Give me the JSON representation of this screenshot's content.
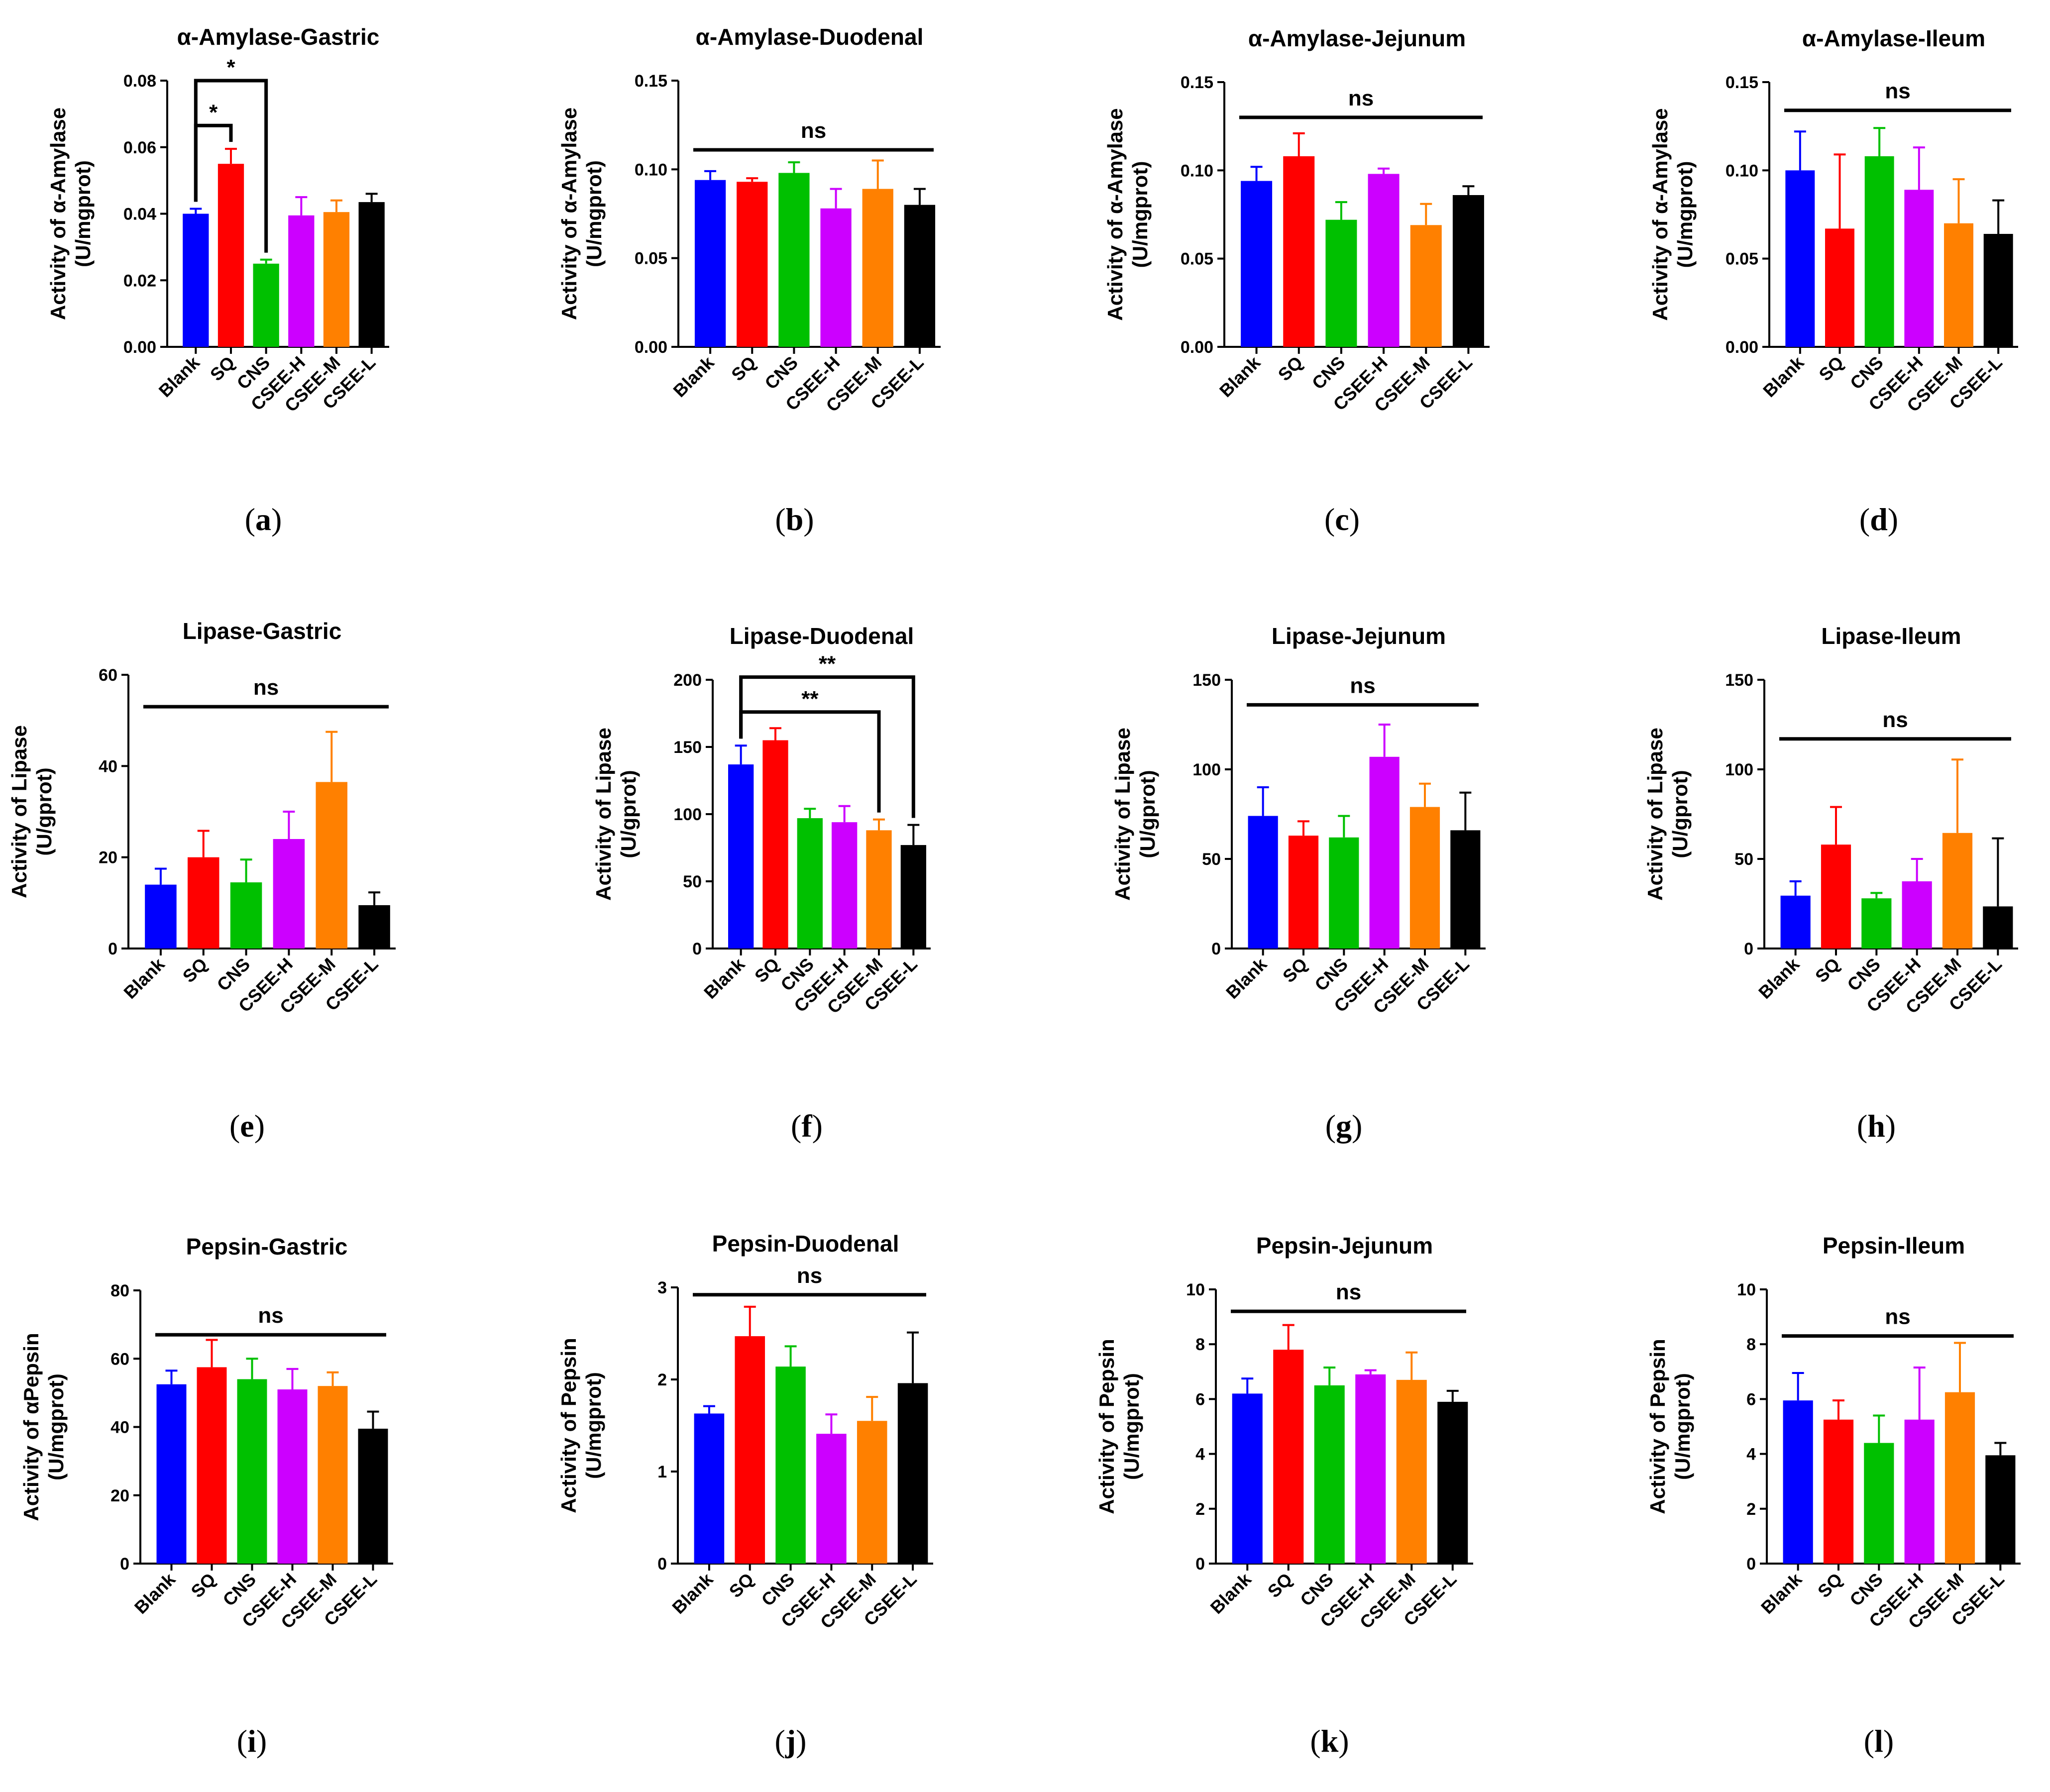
{
  "colors": {
    "Blank": "#0000ff",
    "SQ": "#ff0000",
    "CNS": "#00c000",
    "CSEE-H": "#cc00ff",
    "CSEE-M": "#ff8000",
    "CSEE-L": "#000000",
    "axis": "#000000"
  },
  "chart_data": [
    {
      "type": "bar",
      "label": "a",
      "title": "α-Amylase-Gastric",
      "ylabel": [
        "Activity of α-Amylase",
        "(U/mgprot)"
      ],
      "categories": [
        "Blank",
        "SQ",
        "CNS",
        "CSEE-H",
        "CSEE-M",
        "CSEE-L"
      ],
      "values": [
        0.04,
        0.055,
        0.025,
        0.0395,
        0.0405,
        0.0435
      ],
      "errors": [
        0.0015,
        0.0045,
        0.0012,
        0.0055,
        0.0035,
        0.0025
      ],
      "ylim": [
        0,
        0.08
      ],
      "yticks": [
        "0.00",
        "0.02",
        "0.04",
        "0.06",
        "0.08"
      ],
      "brackets": [
        {
          "type": "pair",
          "from": 0,
          "to": 1,
          "level": 0.0665,
          "label": "*"
        },
        {
          "type": "pair",
          "from": 0,
          "to": 2,
          "level": 0.08,
          "label": "*"
        }
      ]
    },
    {
      "type": "bar",
      "label": "b",
      "title": "α-Amylase-Duodenal",
      "ylabel": [
        "Activity of α-Amylase",
        "(U/mgprot)"
      ],
      "categories": [
        "Blank",
        "SQ",
        "CNS",
        "CSEE-H",
        "CSEE-M",
        "CSEE-L"
      ],
      "values": [
        0.094,
        0.093,
        0.098,
        0.078,
        0.089,
        0.08
      ],
      "errors": [
        0.005,
        0.002,
        0.006,
        0.011,
        0.016,
        0.009
      ],
      "ylim": [
        0,
        0.15
      ],
      "yticks": [
        "0.00",
        "0.05",
        "0.10",
        "0.15"
      ],
      "brackets": [
        {
          "type": "line",
          "level": 0.111,
          "label": "ns"
        }
      ]
    },
    {
      "type": "bar",
      "label": "c",
      "title": "α-Amylase-Jejunum",
      "ylabel": [
        "Activity of α-Amylase",
        "(U/mgprot)"
      ],
      "categories": [
        "Blank",
        "SQ",
        "CNS",
        "CSEE-H",
        "CSEE-M",
        "CSEE-L"
      ],
      "values": [
        0.094,
        0.108,
        0.072,
        0.098,
        0.069,
        0.086
      ],
      "errors": [
        0.008,
        0.013,
        0.01,
        0.003,
        0.012,
        0.005
      ],
      "ylim": [
        0,
        0.15
      ],
      "yticks": [
        "0.00",
        "0.05",
        "0.10",
        "0.15"
      ],
      "brackets": [
        {
          "type": "line",
          "level": 0.13,
          "label": "ns"
        }
      ]
    },
    {
      "type": "bar",
      "label": "d",
      "title": "α-Amylase-Ileum",
      "ylabel": [
        "Activity of α-Amylase",
        "(U/mgprot)"
      ],
      "categories": [
        "Blank",
        "SQ",
        "CNS",
        "CSEE-H",
        "CSEE-M",
        "CSEE-L"
      ],
      "values": [
        0.1,
        0.067,
        0.108,
        0.089,
        0.07,
        0.064
      ],
      "errors": [
        0.022,
        0.042,
        0.016,
        0.024,
        0.025,
        0.019
      ],
      "ylim": [
        0,
        0.15
      ],
      "yticks": [
        "0.00",
        "0.05",
        "0.10",
        "0.15"
      ],
      "brackets": [
        {
          "type": "line",
          "level": 0.134,
          "label": "ns"
        }
      ]
    },
    {
      "type": "bar",
      "label": "e",
      "title": "Lipase-Gastric",
      "ylabel": [
        "Activity of Lipase",
        "(U/gprot)"
      ],
      "categories": [
        "Blank",
        "SQ",
        "CNS",
        "CSEE-H",
        "CSEE-M",
        "CSEE-L"
      ],
      "values": [
        14,
        20,
        14.5,
        24,
        36.5,
        9.5
      ],
      "errors": [
        3.5,
        5.8,
        5.0,
        6.0,
        11.0,
        2.8
      ],
      "ylim": [
        0,
        60
      ],
      "yticks": [
        "0",
        "20",
        "40",
        "60"
      ],
      "brackets": [
        {
          "type": "line",
          "level": 53,
          "label": "ns"
        }
      ]
    },
    {
      "type": "bar",
      "label": "f",
      "title": "Lipase-Duodenal",
      "ylabel": [
        "Activity of Lipase",
        "(U/gprot)"
      ],
      "categories": [
        "Blank",
        "SQ",
        "CNS",
        "CSEE-H",
        "CSEE-M",
        "CSEE-L"
      ],
      "values": [
        137,
        155,
        97,
        94,
        88,
        77
      ],
      "errors": [
        14,
        9,
        7,
        12,
        8,
        15
      ],
      "ylim": [
        0,
        200
      ],
      "yticks": [
        "0",
        "50",
        "100",
        "150",
        "200"
      ],
      "brackets": [
        {
          "type": "pair",
          "from": 0,
          "to": 4,
          "level": 176,
          "label": "**"
        },
        {
          "type": "pair",
          "from": 0,
          "to": 5,
          "level": 202,
          "label": "**"
        }
      ]
    },
    {
      "type": "bar",
      "label": "g",
      "title": "Lipase-Jejunum",
      "ylabel": [
        "Activity of Lipase",
        "(U/gprot)"
      ],
      "categories": [
        "Blank",
        "SQ",
        "CNS",
        "CSEE-H",
        "CSEE-M",
        "CSEE-L"
      ],
      "values": [
        74,
        63,
        62,
        107,
        79,
        66
      ],
      "errors": [
        16,
        8,
        12,
        18,
        13,
        21
      ],
      "ylim": [
        0,
        150
      ],
      "yticks": [
        "0",
        "50",
        "100",
        "150"
      ],
      "brackets": [
        {
          "type": "line",
          "level": 136,
          "label": "ns"
        }
      ]
    },
    {
      "type": "bar",
      "label": "h",
      "title": "Lipase-Ileum",
      "ylabel": [
        "Activity of Lipase",
        "(U/gprot)"
      ],
      "categories": [
        "Blank",
        "SQ",
        "CNS",
        "CSEE-H",
        "CSEE-M",
        "CSEE-L"
      ],
      "values": [
        29.5,
        58,
        28,
        37.5,
        64.5,
        23.5
      ],
      "errors": [
        8,
        21,
        3,
        12.5,
        41,
        38
      ],
      "ylim": [
        0,
        150
      ],
      "yticks": [
        "0",
        "50",
        "100",
        "150"
      ],
      "brackets": [
        {
          "type": "line",
          "level": 117,
          "label": "ns"
        }
      ]
    },
    {
      "type": "bar",
      "label": "i",
      "title": "Pepsin-Gastric",
      "ylabel": [
        "Activity of αPepsin",
        "(U/mgprot)"
      ],
      "categories": [
        "Blank",
        "SQ",
        "CNS",
        "CSEE-H",
        "CSEE-M",
        "CSEE-L"
      ],
      "values": [
        52.5,
        57.5,
        54,
        51,
        52,
        39.5
      ],
      "errors": [
        4.0,
        8.0,
        6.0,
        6.0,
        4.0,
        5.0
      ],
      "ylim": [
        0,
        80
      ],
      "yticks": [
        "0",
        "20",
        "40",
        "60",
        "80"
      ],
      "brackets": [
        {
          "type": "line",
          "level": 67,
          "label": "ns"
        }
      ]
    },
    {
      "type": "bar",
      "label": "j",
      "title": "Pepsin-Duodenal",
      "ylabel": [
        "Activity of Pepsin",
        "(U/mgprot)"
      ],
      "categories": [
        "Blank",
        "SQ",
        "CNS",
        "CSEE-H",
        "CSEE-M",
        "CSEE-L"
      ],
      "values": [
        1.63,
        2.47,
        2.14,
        1.41,
        1.55,
        1.96
      ],
      "errors": [
        0.08,
        0.32,
        0.22,
        0.21,
        0.26,
        0.55
      ],
      "ylim": [
        0,
        3
      ],
      "yticks": [
        "0",
        "1",
        "2",
        "3"
      ],
      "brackets": [
        {
          "type": "line",
          "level": 2.92,
          "label": "ns"
        }
      ]
    },
    {
      "type": "bar",
      "label": "k",
      "title": "Pepsin-Jejunum",
      "ylabel": [
        "Activity of Pepsin",
        "(U/mgprot)"
      ],
      "categories": [
        "Blank",
        "SQ",
        "CNS",
        "CSEE-H",
        "CSEE-M",
        "CSEE-L"
      ],
      "values": [
        6.2,
        7.8,
        6.5,
        6.9,
        6.7,
        5.9
      ],
      "errors": [
        0.55,
        0.9,
        0.65,
        0.15,
        1.0,
        0.4
      ],
      "ylim": [
        0,
        10
      ],
      "yticks": [
        "0",
        "2",
        "4",
        "6",
        "8",
        "10"
      ],
      "brackets": [
        {
          "type": "line",
          "level": 9.2,
          "label": "ns"
        }
      ]
    },
    {
      "type": "bar",
      "label": "l",
      "title": "Pepsin-Ileum",
      "ylabel": [
        "Activity of Pepsin",
        "(U/mgprot)"
      ],
      "categories": [
        "Blank",
        "SQ",
        "CNS",
        "CSEE-H",
        "CSEE-M",
        "CSEE-L"
      ],
      "values": [
        5.95,
        5.25,
        4.4,
        5.25,
        6.25,
        3.95
      ],
      "errors": [
        1.0,
        0.7,
        1.0,
        1.9,
        1.8,
        0.45
      ],
      "ylim": [
        0,
        10
      ],
      "yticks": [
        "0",
        "2",
        "4",
        "6",
        "8",
        "10"
      ],
      "brackets": [
        {
          "type": "line",
          "level": 8.3,
          "label": "ns"
        }
      ]
    }
  ]
}
